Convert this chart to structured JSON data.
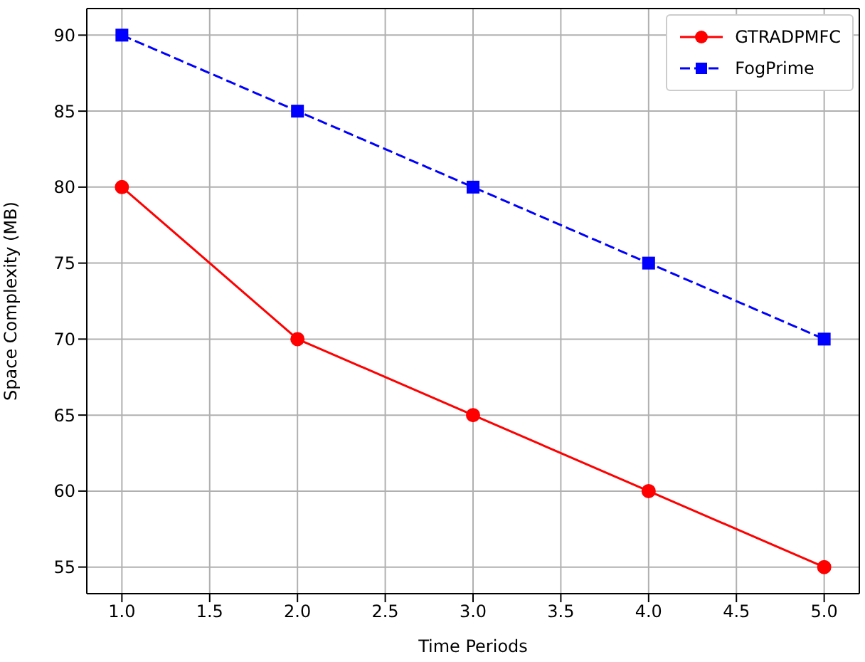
{
  "chart_data": {
    "type": "line",
    "xlabel": "Time Periods",
    "ylabel": "Space Complexity (MB)",
    "x": [
      1,
      2,
      3,
      4,
      5
    ],
    "series": [
      {
        "name": "GTRADPMFC",
        "color": "#ff0000",
        "values": [
          80,
          70,
          65,
          60,
          55
        ],
        "marker": "circle",
        "line_style": "solid"
      },
      {
        "name": "FogPrime",
        "color": "#0000ff",
        "values": [
          90,
          85,
          80,
          75,
          70
        ],
        "marker": "square",
        "line_style": "dashed"
      }
    ],
    "xlim": [
      0.8,
      5.2
    ],
    "xticks": [
      {
        "value": 1,
        "label": "1.0"
      },
      {
        "value": 1.5,
        "label": "1.5"
      },
      {
        "value": 2,
        "label": "2.0"
      },
      {
        "value": 2.5,
        "label": "2.5"
      },
      {
        "value": 3,
        "label": "3.0"
      },
      {
        "value": 3.5,
        "label": "3.5"
      },
      {
        "value": 4,
        "label": "4.0"
      },
      {
        "value": 4.5,
        "label": "4.5"
      },
      {
        "value": 5,
        "label": "5.0"
      }
    ],
    "ylim": [
      53.25,
      91.75
    ],
    "yticks": [
      55,
      60,
      65,
      70,
      75,
      80,
      85,
      90
    ],
    "grid": true,
    "legend": "top right"
  }
}
